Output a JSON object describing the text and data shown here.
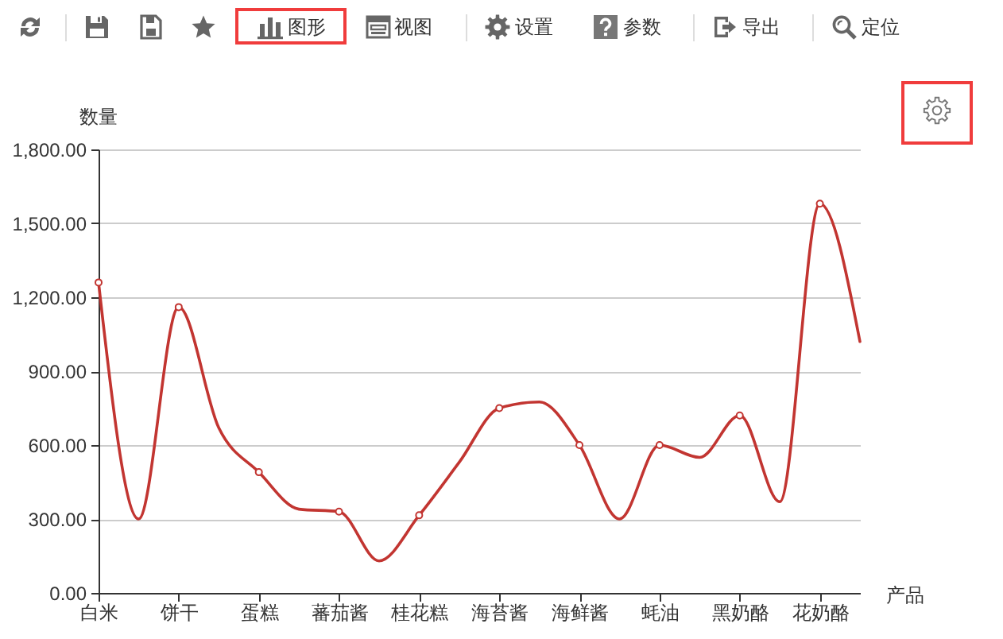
{
  "chart_data": {
    "type": "line",
    "xlabel": "产品",
    "ylabel": "数量",
    "categories": [
      "白米",
      null,
      "饼干",
      null,
      "蛋糕",
      null,
      "蕃茄酱",
      null,
      "桂花糕",
      null,
      "海苔酱",
      null,
      "海鲜酱",
      null,
      "蚝油",
      null,
      "黑奶酪",
      null,
      "花奶酪",
      null
    ],
    "values": [
      1260,
      300,
      1160,
      670,
      490,
      340,
      330,
      130,
      315,
      530,
      750,
      775,
      600,
      300,
      600,
      550,
      720,
      370,
      1580,
      1020
    ],
    "color": "#c23531",
    "ylim": [
      0,
      1800
    ],
    "yticks": [
      {
        "value": 0,
        "label": "0.00"
      },
      {
        "value": 300,
        "label": "300.00"
      },
      {
        "value": 600,
        "label": "600.00"
      },
      {
        "value": 900,
        "label": "900.00"
      },
      {
        "value": 1200,
        "label": "1,200.00"
      },
      {
        "value": 1500,
        "label": "1,500.00"
      },
      {
        "value": 1800,
        "label": "1,800.00"
      }
    ],
    "grid": "y",
    "marker": "circle",
    "annotations": [
      "图形",
      "视图",
      "设置",
      "参数",
      "导出",
      "定位"
    ]
  }
}
